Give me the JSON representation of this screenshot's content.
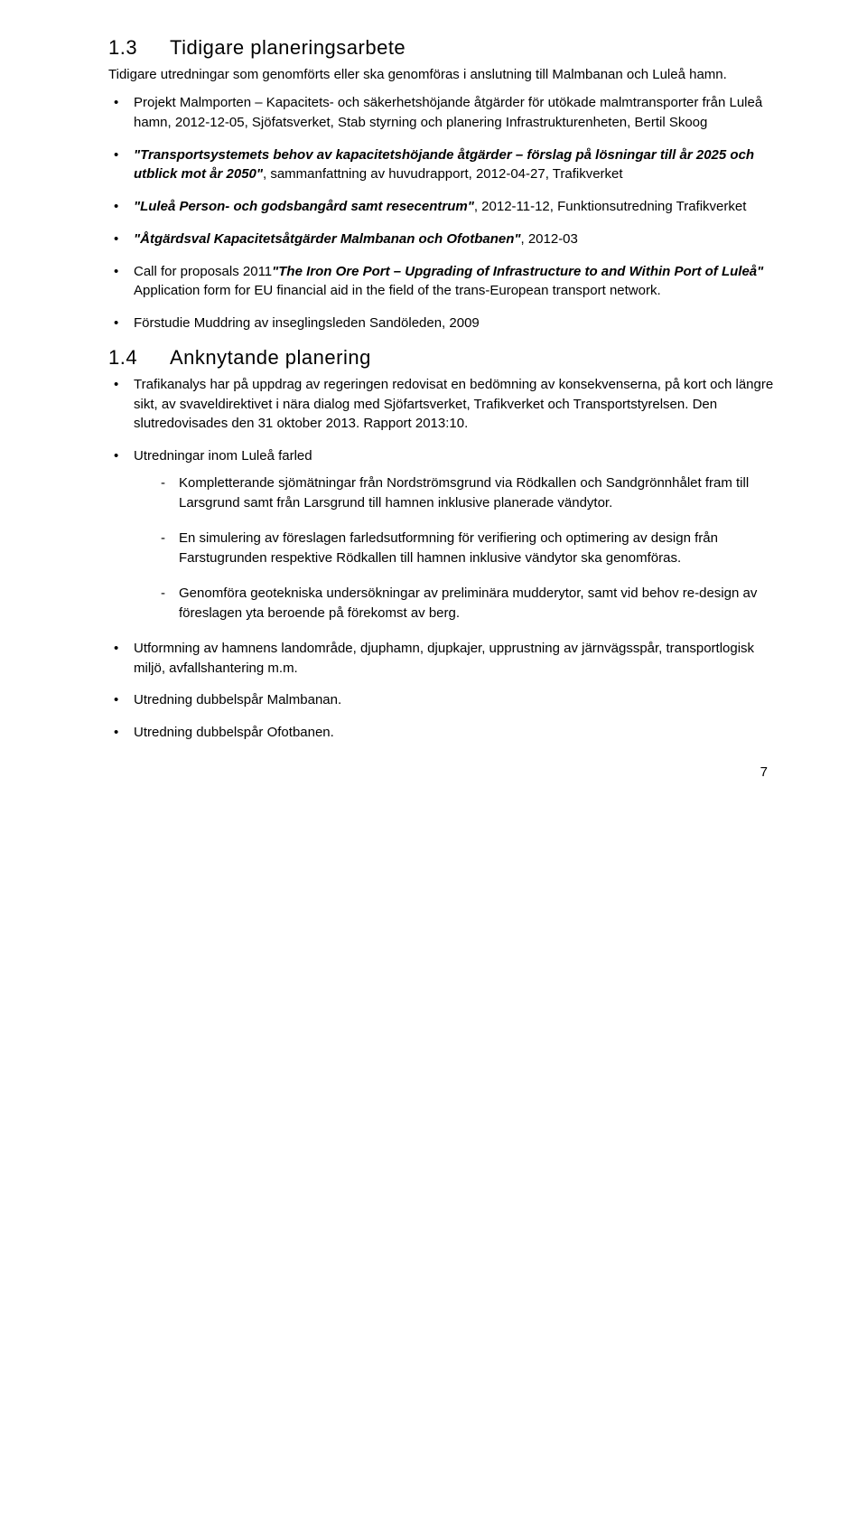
{
  "section13": {
    "num": "1.3",
    "title": "Tidigare planeringsarbete",
    "intro": "Tidigare utredningar som genomförts eller ska genomföras i anslutning till Malmbanan och Luleå hamn.",
    "items": [
      {
        "pre": "Projekt Malmporten – Kapacitets- och säkerhetshöjande åtgärder för utökade malmtransporter från Luleå hamn, 2012-12-05, Sjöfatsverket, Stab styrning och planering Infrastrukturenheten, Bertil Skoog"
      },
      {
        "quote": "\"Transportsystemets behov av kapacitetshöjande åtgärder – förslag på lösningar till år 2025 och utblick mot år 2050\"",
        "tail": ", sammanfattning av huvudrapport, 2012-04-27, Trafikverket"
      },
      {
        "quote": "\"Luleå Person- och godsbangård samt resecentrum\"",
        "tail": ", 2012-11-12, Funktionsutredning Trafikverket"
      },
      {
        "quote": "\"Åtgärdsval Kapacitetsåtgärder Malmbanan och Ofotbanen\"",
        "tail": ", 2012-03"
      },
      {
        "pre": "Call for proposals 2011",
        "quote": "\"The Iron Ore Port – Upgrading of Infrastructure to and Within Port of Luleå\"",
        "tail": " Application form for EU financial aid in the field of the trans-European transport network."
      },
      {
        "pre": "Förstudie Muddring av inseglingsleden Sandöleden, 2009"
      }
    ]
  },
  "section14": {
    "num": "1.4",
    "title": "Anknytande planering",
    "items": [
      "Trafikanalys har på uppdrag av regeringen redovisat en bedömning av konsekvenserna, på kort och längre sikt, av svaveldirektivet i nära dialog med Sjöfartsverket, Trafikverket och Transportstyrelsen. Den slutredovisades den 31 oktober 2013. Rapport 2013:10.",
      "Utredningar inom Luleå farled",
      "Utformning av hamnens landområde, djuphamn, djupkajer, upprustning av järnvägsspår, transportlogisk miljö, avfallshantering m.m.",
      "Utredning dubbelspår Malmbanan.",
      "Utredning dubbelspår Ofotbanen."
    ],
    "subitems": [
      "Kompletterande sjömätningar från Nordströmsgrund via Rödkallen och Sandgrönnhålet fram till Larsgrund samt från Larsgrund till hamnen inklusive planerade vändytor.",
      "En simulering av föreslagen farledsutformning för verifiering och optimering av design från Farstugrunden respektive Rödkallen till hamnen inklusive vändytor ska genomföras.",
      "Genomföra geotekniska undersökningar av preliminära mudderytor, samt vid behov re-design av föreslagen yta beroende på förekomst av berg."
    ]
  },
  "pagenum": "7"
}
